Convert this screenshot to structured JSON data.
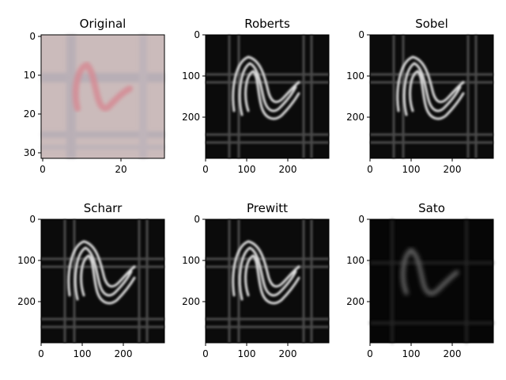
{
  "panels": [
    {
      "title": "Original",
      "image": "original-photo",
      "xticks": [
        "0",
        "20"
      ],
      "yticks": [
        "0",
        "10",
        "20",
        "30"
      ],
      "xlim": [
        -0.5,
        31.5
      ],
      "ylim": [
        31.5,
        -0.5
      ]
    },
    {
      "title": "Roberts",
      "image": "edge-map-roberts",
      "xticks": [
        "0",
        "100",
        "200"
      ],
      "yticks": [
        "0",
        "100",
        "200"
      ],
      "xlim": [
        -0.5,
        299.5
      ],
      "ylim": [
        299.5,
        -0.5
      ]
    },
    {
      "title": "Sobel",
      "image": "edge-map-sobel",
      "xticks": [
        "0",
        "100",
        "200"
      ],
      "yticks": [
        "0",
        "100",
        "200"
      ],
      "xlim": [
        -0.5,
        299.5
      ],
      "ylim": [
        299.5,
        -0.5
      ]
    },
    {
      "title": "Scharr",
      "image": "edge-map-scharr",
      "xticks": [
        "0",
        "100",
        "200"
      ],
      "yticks": [
        "0",
        "100",
        "200"
      ],
      "xlim": [
        -0.5,
        299.5
      ],
      "ylim": [
        299.5,
        -0.5
      ]
    },
    {
      "title": "Prewitt",
      "image": "edge-map-prewitt",
      "xticks": [
        "0",
        "100",
        "200"
      ],
      "yticks": [
        "0",
        "100",
        "200"
      ],
      "xlim": [
        -0.5,
        299.5
      ],
      "ylim": [
        299.5,
        -0.5
      ]
    },
    {
      "title": "Sato",
      "image": "edge-map-sato",
      "xticks": [
        "0",
        "100",
        "200"
      ],
      "yticks": [
        "0",
        "100",
        "200"
      ],
      "xlim": [
        -0.5,
        299.5
      ],
      "ylim": [
        299.5,
        -0.5
      ]
    }
  ],
  "colors": {
    "paper_background": "#c9b8b8",
    "ink": "#d68b92",
    "edge_background": "#0a0a0a",
    "edge_line": "#d8d8d8",
    "grid_line_faint": "#4a4a4a"
  }
}
